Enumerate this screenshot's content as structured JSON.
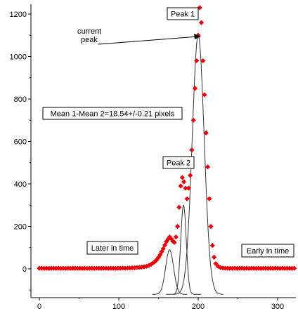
{
  "chart_data": {
    "type": "scatter",
    "title": "",
    "xlabel": "",
    "ylabel": "",
    "xlim": [
      -10,
      325
    ],
    "ylim": [
      -130,
      1230
    ],
    "x_ticks": [
      0,
      100,
      200,
      300
    ],
    "y_ticks": [
      0,
      200,
      400,
      600,
      800,
      1000,
      1200
    ],
    "grid": false,
    "colors": {
      "data": "#e8000b",
      "fit": "#333333",
      "axis": "#000000"
    },
    "series": [
      {
        "marker": "diamond",
        "x": [
          0,
          3,
          6,
          9,
          12,
          15,
          18,
          21,
          24,
          27,
          30,
          33,
          36,
          39,
          42,
          45,
          48,
          51,
          54,
          57,
          60,
          63,
          66,
          69,
          72,
          75,
          78,
          81,
          84,
          87,
          90,
          93,
          96,
          99,
          102,
          105,
          108,
          111,
          114,
          117,
          120,
          123,
          126,
          129,
          132,
          135,
          138,
          141,
          144,
          146,
          148,
          150,
          152,
          154,
          156,
          158,
          160,
          162,
          164,
          166,
          168,
          170,
          172,
          174,
          176,
          178,
          180,
          182,
          184,
          186,
          188,
          190,
          192,
          194,
          196,
          198,
          200,
          202,
          204,
          206,
          208,
          210,
          212,
          214,
          216,
          218,
          220,
          222,
          225,
          228,
          231,
          234,
          237,
          240,
          243,
          246,
          249,
          252,
          255,
          258,
          261,
          264,
          267,
          270,
          273,
          276,
          279,
          282,
          285,
          288,
          291,
          294,
          297,
          300,
          303,
          306,
          309,
          312,
          315,
          318,
          321
        ],
        "y": [
          3,
          3,
          2,
          3,
          2,
          3,
          3,
          2,
          3,
          2,
          3,
          2,
          3,
          2,
          3,
          3,
          2,
          3,
          2,
          3,
          2,
          3,
          3,
          2,
          3,
          3,
          2,
          3,
          3,
          2,
          3,
          3,
          2,
          3,
          3,
          4,
          3,
          4,
          4,
          5,
          5,
          6,
          7,
          8,
          10,
          12,
          16,
          22,
          30,
          36,
          44,
          54,
          66,
          80,
          95,
          112,
          128,
          140,
          150,
          142,
          130,
          125,
          150,
          200,
          290,
          390,
          430,
          410,
          380,
          330,
          380,
          440,
          560,
          700,
          850,
          980,
          1100,
          1230,
          1160,
          980,
          820,
          640,
          480,
          330,
          200,
          110,
          55,
          25,
          12,
          6,
          4,
          3,
          3,
          3,
          2,
          3,
          2,
          3,
          3,
          2,
          3,
          2,
          3,
          3,
          2,
          3,
          2,
          3,
          3,
          2,
          3,
          2,
          3,
          3,
          2,
          3,
          2,
          3,
          3,
          2,
          3
        ]
      }
    ],
    "fit_curves": [
      {
        "amplitude": 1100,
        "mean": 200,
        "sigma": 7.5
      },
      {
        "amplitude": 300,
        "mean": 181.5,
        "sigma": 3.5
      },
      {
        "amplitude": 90,
        "mean": 164,
        "sigma": 5
      }
    ],
    "fit_baseline": -120,
    "annotations": {
      "peak1": "Peak 1",
      "peak2": "Peak 2",
      "current_peak_line1": "current",
      "current_peak_line2": "peak",
      "mean_diff": "Mean 1-Mean 2=18.54+/-0.21 pixels",
      "later": "Later in time",
      "early": "Early in time"
    }
  }
}
